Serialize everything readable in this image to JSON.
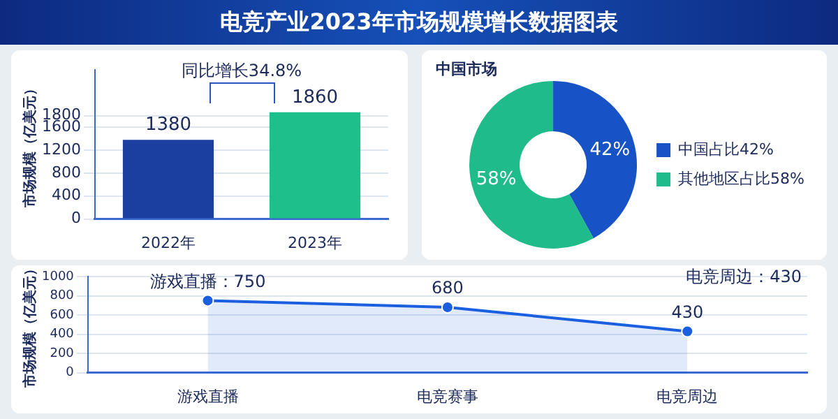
{
  "chart_data": [
    {
      "type": "bar",
      "title": "电竞产业2023年市场规模增长数据图表",
      "categories": [
        "2022年",
        "2023年"
      ],
      "values": [
        1380,
        1860
      ],
      "colors": [
        "#1a3fa0",
        "#1dbf8a"
      ],
      "ylabel": "市场规模（亿美元）",
      "ylim": [
        0,
        2600
      ],
      "yticks": [
        0,
        400,
        800,
        1200,
        1600,
        1800
      ],
      "grid": "y",
      "data_labels": true,
      "legend": false,
      "annotations": [
        {
          "text": "同比增长34.8%",
          "x": "2023年",
          "y": 1860
        }
      ]
    },
    {
      "type": "donut",
      "title": "中国市场",
      "categories": [
        "中国占比42%",
        "其他地区占比58%"
      ],
      "values": [
        42,
        58
      ],
      "colors": [
        "#1753c4",
        "#1fbb8a"
      ],
      "value_labels": [
        "42%",
        "58%"
      ],
      "legend": "right"
    },
    {
      "type": "area",
      "categories": [
        "游戏直播",
        "电竞赛事",
        "电竞周边"
      ],
      "values": [
        750,
        680,
        430
      ],
      "color": "#1a5fe0",
      "value_labels": [
        "游戏直播：750",
        "680",
        "430"
      ],
      "ylabel": "市场规模（亿美元）",
      "ylim": [
        0,
        1000
      ],
      "yticks": [
        0,
        200,
        400,
        600,
        800,
        1000
      ],
      "grid": "y",
      "marker": "circle",
      "legend": false,
      "annotations": [
        "电竞周边：430"
      ]
    }
  ]
}
